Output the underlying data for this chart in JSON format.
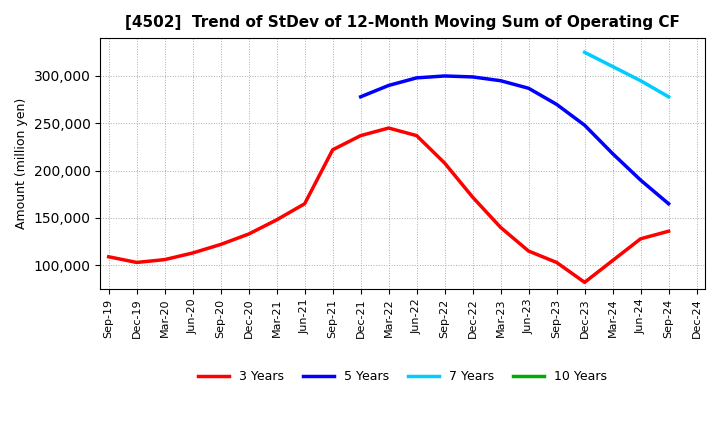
{
  "title": "[4502]  Trend of StDev of 12-Month Moving Sum of Operating CF",
  "ylabel": "Amount (million yen)",
  "background_color": "#ffffff",
  "grid_color": "#aaaaaa",
  "ylim": [
    75000,
    340000
  ],
  "yticks": [
    100000,
    150000,
    200000,
    250000,
    300000
  ],
  "series": {
    "3 Years": {
      "color": "#ff0000",
      "x": [
        0,
        1,
        2,
        3,
        4,
        5,
        6,
        7,
        8,
        9,
        10,
        11,
        12,
        13,
        14,
        15,
        16,
        17,
        18,
        19,
        20
      ],
      "y": [
        109000,
        103000,
        106000,
        113000,
        122000,
        133000,
        148000,
        165000,
        222000,
        237000,
        245000,
        237000,
        208000,
        172000,
        140000,
        115000,
        103000,
        82000,
        105000,
        128000,
        136000
      ]
    },
    "5 Years": {
      "color": "#0000ff",
      "x": [
        9,
        10,
        11,
        12,
        13,
        14,
        15,
        16,
        17,
        18,
        19,
        20
      ],
      "y": [
        278000,
        290000,
        298000,
        300000,
        299000,
        295000,
        287000,
        270000,
        248000,
        218000,
        190000,
        165000
      ]
    },
    "7 Years": {
      "color": "#00ccff",
      "x": [
        17,
        18,
        19,
        20
      ],
      "y": [
        325000,
        310000,
        295000,
        278000
      ]
    },
    "10 Years": {
      "color": "#00aa00",
      "x": [],
      "y": []
    }
  },
  "xtick_labels": [
    "Sep-19",
    "Dec-19",
    "Mar-20",
    "Jun-20",
    "Sep-20",
    "Dec-20",
    "Mar-21",
    "Jun-21",
    "Sep-21",
    "Dec-21",
    "Mar-22",
    "Jun-22",
    "Sep-22",
    "Dec-22",
    "Mar-23",
    "Jun-23",
    "Sep-23",
    "Dec-23",
    "Mar-24",
    "Jun-24",
    "Sep-24",
    "Dec-24"
  ],
  "xtick_positions": [
    0,
    1,
    2,
    3,
    4,
    5,
    6,
    7,
    8,
    9,
    10,
    11,
    12,
    13,
    14,
    15,
    16,
    17,
    18,
    19,
    20,
    21
  ],
  "linewidth": 2.5
}
